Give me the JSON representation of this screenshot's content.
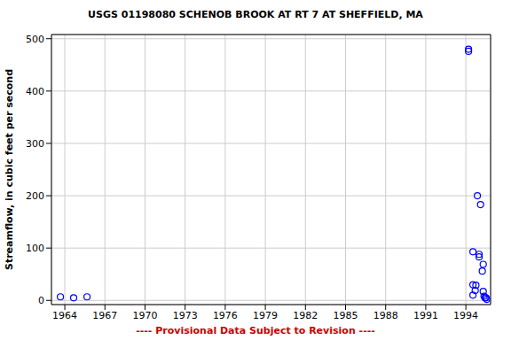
{
  "chart_data": {
    "type": "scatter",
    "title": "USGS 01198080 SCHENOB BROOK AT RT 7 AT SHEFFIELD, MA",
    "annotations": [
      "---- Provisional Data Subject to Revision ----"
    ],
    "y_label": "Streamflow, in cubic feet per second",
    "x": [
      1963.67,
      1964.66,
      1965.66,
      1994.2,
      1994.2,
      1994.53,
      1994.53,
      1994.53,
      1994.7,
      1994.75,
      1994.86,
      1994.99,
      1994.99,
      1995.1,
      1995.3,
      1995.23,
      1995.3,
      1995.36,
      1995.43,
      1995.56,
      1995.5
    ],
    "values": [
      6.8,
      5,
      6.8,
      480,
      476,
      93,
      30,
      10,
      19,
      29,
      200,
      88,
      83,
      183,
      69,
      56,
      17,
      8,
      5,
      2,
      5
    ],
    "color": "#0000ff",
    "marker": "circle",
    "xlim": [
      1963,
      1995.85
    ],
    "xticks": [
      1964,
      1967,
      1970,
      1973,
      1976,
      1979,
      1982,
      1985,
      1988,
      1991,
      1994
    ],
    "ylim": [
      -8,
      508
    ],
    "yticks": [
      0,
      100,
      200,
      300,
      400,
      500
    ],
    "grid": true
  }
}
